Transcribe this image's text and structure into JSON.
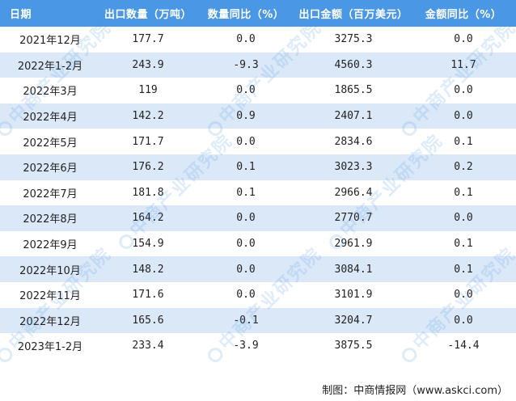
{
  "table": {
    "headers": [
      "日期",
      "出口数量（万吨）",
      "数量同比（%）",
      "出口金额（百万美元）",
      "金额同比（%）"
    ],
    "rows": [
      [
        "2021年12月",
        "177.7",
        "0.0",
        "3275.3",
        "0.0"
      ],
      [
        "2022年1-2月",
        "243.9",
        "-9.3",
        "4560.3",
        "11.7"
      ],
      [
        "2022年3月",
        "119",
        "0.0",
        "1865.5",
        "0.0"
      ],
      [
        "2022年4月",
        "142.2",
        "0.9",
        "2407.1",
        "0.0"
      ],
      [
        "2022年5月",
        "171.7",
        "0.0",
        "2834.6",
        "0.1"
      ],
      [
        "2022年6月",
        "176.2",
        "0.1",
        "3023.3",
        "0.2"
      ],
      [
        "2022年7月",
        "181.8",
        "0.1",
        "2966.4",
        "0.1"
      ],
      [
        "2022年8月",
        "164.2",
        "0.0",
        "2770.7",
        "0.0"
      ],
      [
        "2022年9月",
        "154.9",
        "0.0",
        "2961.9",
        "0.1"
      ],
      [
        "2022年10月",
        "148.2",
        "0.0",
        "3084.1",
        "0.1"
      ],
      [
        "2022年11月",
        "171.6",
        "0.0",
        "3101.9",
        "0.0"
      ],
      [
        "2022年12月",
        "165.6",
        "-0.1",
        "3204.7",
        "0.0"
      ],
      [
        "2023年1-2月",
        "233.4",
        "-3.9",
        "3875.5",
        "-14.4"
      ]
    ]
  },
  "footer": {
    "source": "制图：中商情报网（www.askci.com）"
  },
  "watermark": {
    "text": "中商产业研究院"
  },
  "colors": {
    "header_bg": "#4a97e6",
    "stripe_bg": "#dbe8f8",
    "header_text": "#ffffff"
  }
}
